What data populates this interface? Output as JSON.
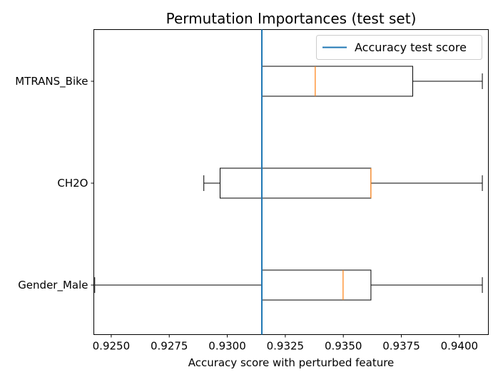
{
  "chart_data": {
    "type": "boxplot",
    "orientation": "horizontal",
    "title": "Permutation Importances (test set)",
    "xlabel": "Accuracy score with perturbed feature",
    "ylabel": "",
    "xlim": [
      0.92425,
      0.94125
    ],
    "xticks": [
      0.925,
      0.9275,
      0.93,
      0.9325,
      0.935,
      0.9375,
      0.94
    ],
    "xtick_labels": [
      "0.9250",
      "0.9275",
      "0.9300",
      "0.9325",
      "0.9350",
      "0.9375",
      "0.9400"
    ],
    "categories": [
      "MTRANS_Bike",
      "CH2O",
      "Gender_Male"
    ],
    "boxes": [
      {
        "label": "MTRANS_Bike",
        "whisker_low": 0.93149,
        "q1": 0.93149,
        "median": 0.93379,
        "q3": 0.93799,
        "whisker_high": 0.94099
      },
      {
        "label": "CH2O",
        "whisker_low": 0.92899,
        "q1": 0.92969,
        "median": 0.93619,
        "q3": 0.93619,
        "whisker_high": 0.94099
      },
      {
        "label": "Gender_Male",
        "whisker_low": 0.92429,
        "q1": 0.93149,
        "median": 0.93499,
        "q3": 0.93619,
        "whisker_high": 0.94099
      }
    ],
    "reference_line": {
      "label": "Accuracy test score",
      "value": 0.93149,
      "color": "#1f77b4"
    },
    "legend": {
      "position": "top-right",
      "entries": [
        "Accuracy test score"
      ]
    },
    "box_color": "#000000",
    "median_color": "#ff7f0e",
    "grid": false
  }
}
